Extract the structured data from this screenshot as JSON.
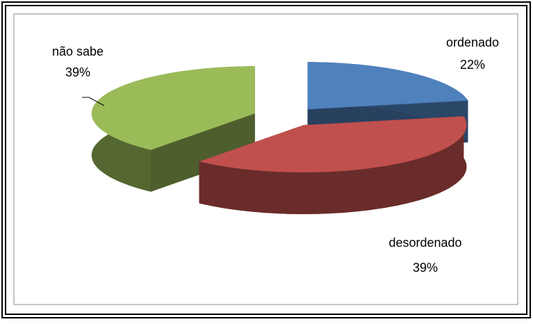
{
  "chart_data": {
    "type": "pie3d",
    "categories": [
      "ordenado",
      "desordenado",
      "não sabe"
    ],
    "values": [
      22,
      39,
      39
    ],
    "value_labels": [
      "22%",
      "39%",
      "39%"
    ],
    "colors": [
      "#4f81bd",
      "#c0504d",
      "#9bbb59"
    ],
    "explode": true
  }
}
